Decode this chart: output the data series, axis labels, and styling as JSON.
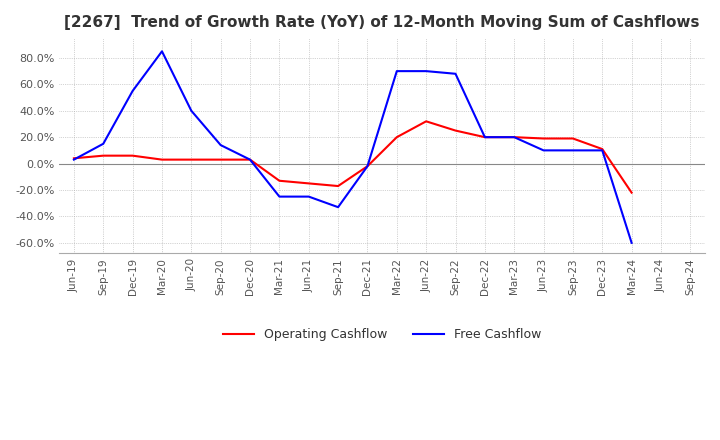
{
  "title": "[2267]  Trend of Growth Rate (YoY) of 12-Month Moving Sum of Cashflows",
  "title_color": "#333333",
  "background_color": "#ffffff",
  "grid_color": "#aaaaaa",
  "ylim": [
    -0.68,
    0.95
  ],
  "yticks": [
    -0.6,
    -0.4,
    -0.2,
    0.0,
    0.2,
    0.4,
    0.6,
    0.8
  ],
  "x_labels": [
    "Jun-19",
    "Sep-19",
    "Dec-19",
    "Mar-20",
    "Jun-20",
    "Sep-20",
    "Dec-20",
    "Mar-21",
    "Jun-21",
    "Sep-21",
    "Dec-21",
    "Mar-22",
    "Jun-22",
    "Sep-22",
    "Dec-22",
    "Mar-23",
    "Jun-23",
    "Sep-23",
    "Dec-23",
    "Mar-24",
    "Jun-24",
    "Sep-24"
  ],
  "operating_cashflow": [
    0.04,
    0.06,
    0.06,
    0.03,
    0.03,
    0.03,
    0.03,
    -0.13,
    -0.15,
    -0.17,
    -0.02,
    0.2,
    0.32,
    0.25,
    0.2,
    0.2,
    0.19,
    0.19,
    0.11,
    -0.22,
    null,
    null
  ],
  "free_cashflow": [
    0.03,
    0.15,
    0.55,
    0.85,
    0.4,
    0.14,
    0.03,
    -0.25,
    -0.25,
    -0.33,
    -0.02,
    0.7,
    0.7,
    0.68,
    0.2,
    0.2,
    0.1,
    0.1,
    0.1,
    -0.6,
    null,
    null
  ],
  "operating_color": "#ff0000",
  "free_color": "#0000ff",
  "legend_labels": [
    "Operating Cashflow",
    "Free Cashflow"
  ]
}
